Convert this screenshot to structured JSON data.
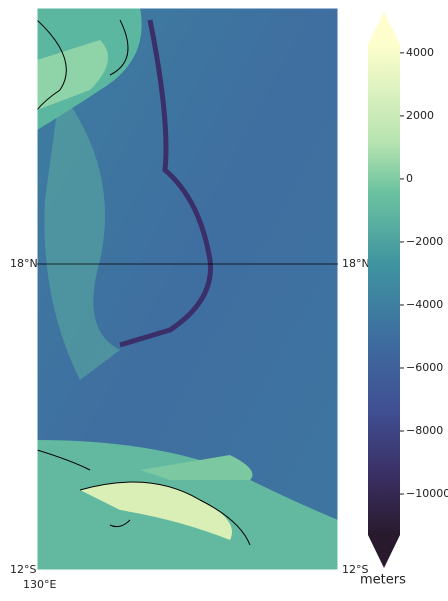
{
  "map": {
    "lat_labels": [
      "18°N",
      "12°S"
    ],
    "lon_labels": [
      "130°E"
    ]
  },
  "colorbar": {
    "label": "meters",
    "lim": [
      -11300,
      4250
    ],
    "ticks": [
      4000,
      2000,
      0,
      {
        "value": -2000,
        "label": "−2000"
      },
      {
        "value": -4000,
        "label": "−4000"
      },
      {
        "value": -6000,
        "label": "−6000"
      },
      {
        "value": -8000,
        "label": "−8000"
      },
      {
        "value": -10000,
        "label": "−10000"
      }
    ]
  }
}
